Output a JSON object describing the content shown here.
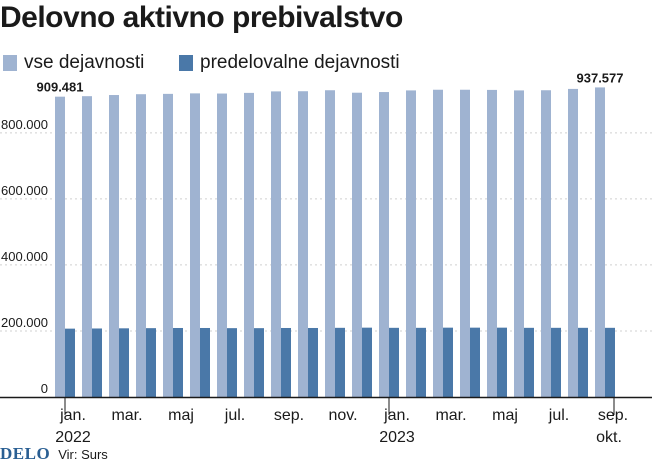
{
  "chart_data": {
    "type": "bar",
    "title": "Delovno aktivno prebivalstvo",
    "series": [
      {
        "name": "vse dejavnosti",
        "color": "#9fb3d1",
        "values": [
          909481,
          911000,
          914500,
          917000,
          918000,
          919500,
          919000,
          921000,
          925500,
          926000,
          929000,
          921500,
          923500,
          928500,
          930500,
          930500,
          930000,
          928500,
          929000,
          933000,
          937577
        ]
      },
      {
        "name": "predelovalne dejavnosti",
        "color": "#4a78a8",
        "values": [
          207000,
          207500,
          208000,
          208500,
          209000,
          209000,
          208500,
          208500,
          209000,
          209000,
          209500,
          210000,
          209500,
          209500,
          210000,
          210000,
          210000,
          209500,
          209500,
          209500,
          209500
        ]
      }
    ],
    "categories": [
      "2022-01",
      "2022-02",
      "2022-03",
      "2022-04",
      "2022-05",
      "2022-06",
      "2022-07",
      "2022-08",
      "2022-09",
      "2022-10",
      "2022-11",
      "2022-12",
      "2023-01",
      "2023-02",
      "2023-03",
      "2023-04",
      "2023-05",
      "2023-06",
      "2023-07",
      "2023-08",
      "2023-09"
    ],
    "x_tick_labels": [
      {
        "index": 0,
        "label": "jan."
      },
      {
        "index": 2,
        "label": "mar."
      },
      {
        "index": 4,
        "label": "maj"
      },
      {
        "index": 6,
        "label": "jul."
      },
      {
        "index": 8,
        "label": "sep."
      },
      {
        "index": 10,
        "label": "nov."
      },
      {
        "index": 12,
        "label": "jan."
      },
      {
        "index": 14,
        "label": "mar."
      },
      {
        "index": 16,
        "label": "maj"
      },
      {
        "index": 18,
        "label": "jul."
      },
      {
        "index": 20,
        "label": "sep."
      }
    ],
    "year_labels": [
      {
        "index": 0,
        "label": "2022"
      },
      {
        "index": 12,
        "label": "2023"
      }
    ],
    "extra_tick_label": "okt.",
    "y_ticks": [
      {
        "value": 0,
        "label": "0"
      },
      {
        "value": 200000,
        "label": "200.000"
      },
      {
        "value": 400000,
        "label": "400.000"
      },
      {
        "value": 600000,
        "label": "600.000"
      },
      {
        "value": 800000,
        "label": "800.000"
      }
    ],
    "ylim": [
      0,
      960000
    ],
    "data_labels": [
      {
        "index": 0,
        "series": 0,
        "label": "909.481"
      },
      {
        "index": 20,
        "series": 0,
        "label": "937.577"
      }
    ],
    "grid": true,
    "legend_position": "top-left"
  },
  "footer": {
    "brand": "DELO",
    "source": "Vir: Surs"
  }
}
